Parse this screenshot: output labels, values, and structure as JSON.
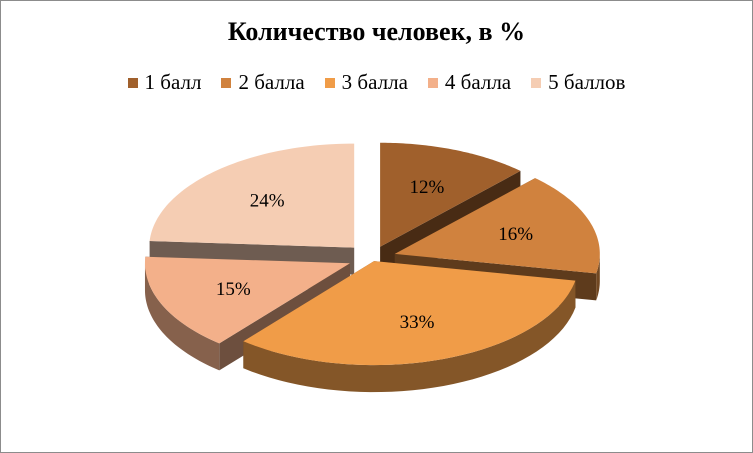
{
  "chart_data": {
    "type": "pie",
    "title": "Количество человек, в %",
    "categories": [
      "1 балл",
      "2 балла",
      "3 балла",
      "4 балла",
      "5 баллов"
    ],
    "values": [
      12,
      16,
      33,
      15,
      24
    ],
    "data_labels": [
      "12%",
      "16%",
      "33%",
      "15%",
      "24%"
    ],
    "colors": [
      "#a0602c",
      "#d0823e",
      "#f09c48",
      "#f3b08a",
      "#f5cdb3"
    ],
    "legend_position": "top",
    "style": "3d-exploded"
  }
}
